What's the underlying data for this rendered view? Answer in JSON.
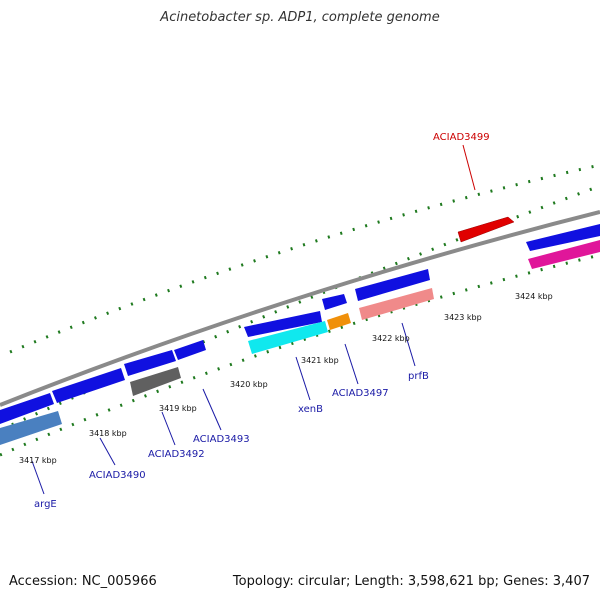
{
  "title": "Acinetobacter sp. ADP1, complete genome",
  "footer": {
    "accession": "Accession: NC_005966",
    "summary": "Topology: circular; Length: 3,598,621 bp; Genes: 3,407"
  },
  "colors": {
    "backbone": "#8a8a8a",
    "ticks": "#1f7a1f",
    "label_blue": "#1a1aa6",
    "label_red": "#cc0000"
  },
  "kbp_labels": [
    "3417 kbp",
    "3418 kbp",
    "3419 kbp",
    "3420 kbp",
    "3421 kbp",
    "3422 kbp",
    "3423 kbp",
    "3424 kbp"
  ],
  "gene_labels": {
    "argE": "argE",
    "ACIAD3490": "ACIAD3490",
    "ACIAD3492": "ACIAD3492",
    "ACIAD3493": "ACIAD3493",
    "xenB": "xenB",
    "ACIAD3497": "ACIAD3497",
    "prfB": "prfB",
    "ACIAD3499": "ACIAD3499"
  }
}
